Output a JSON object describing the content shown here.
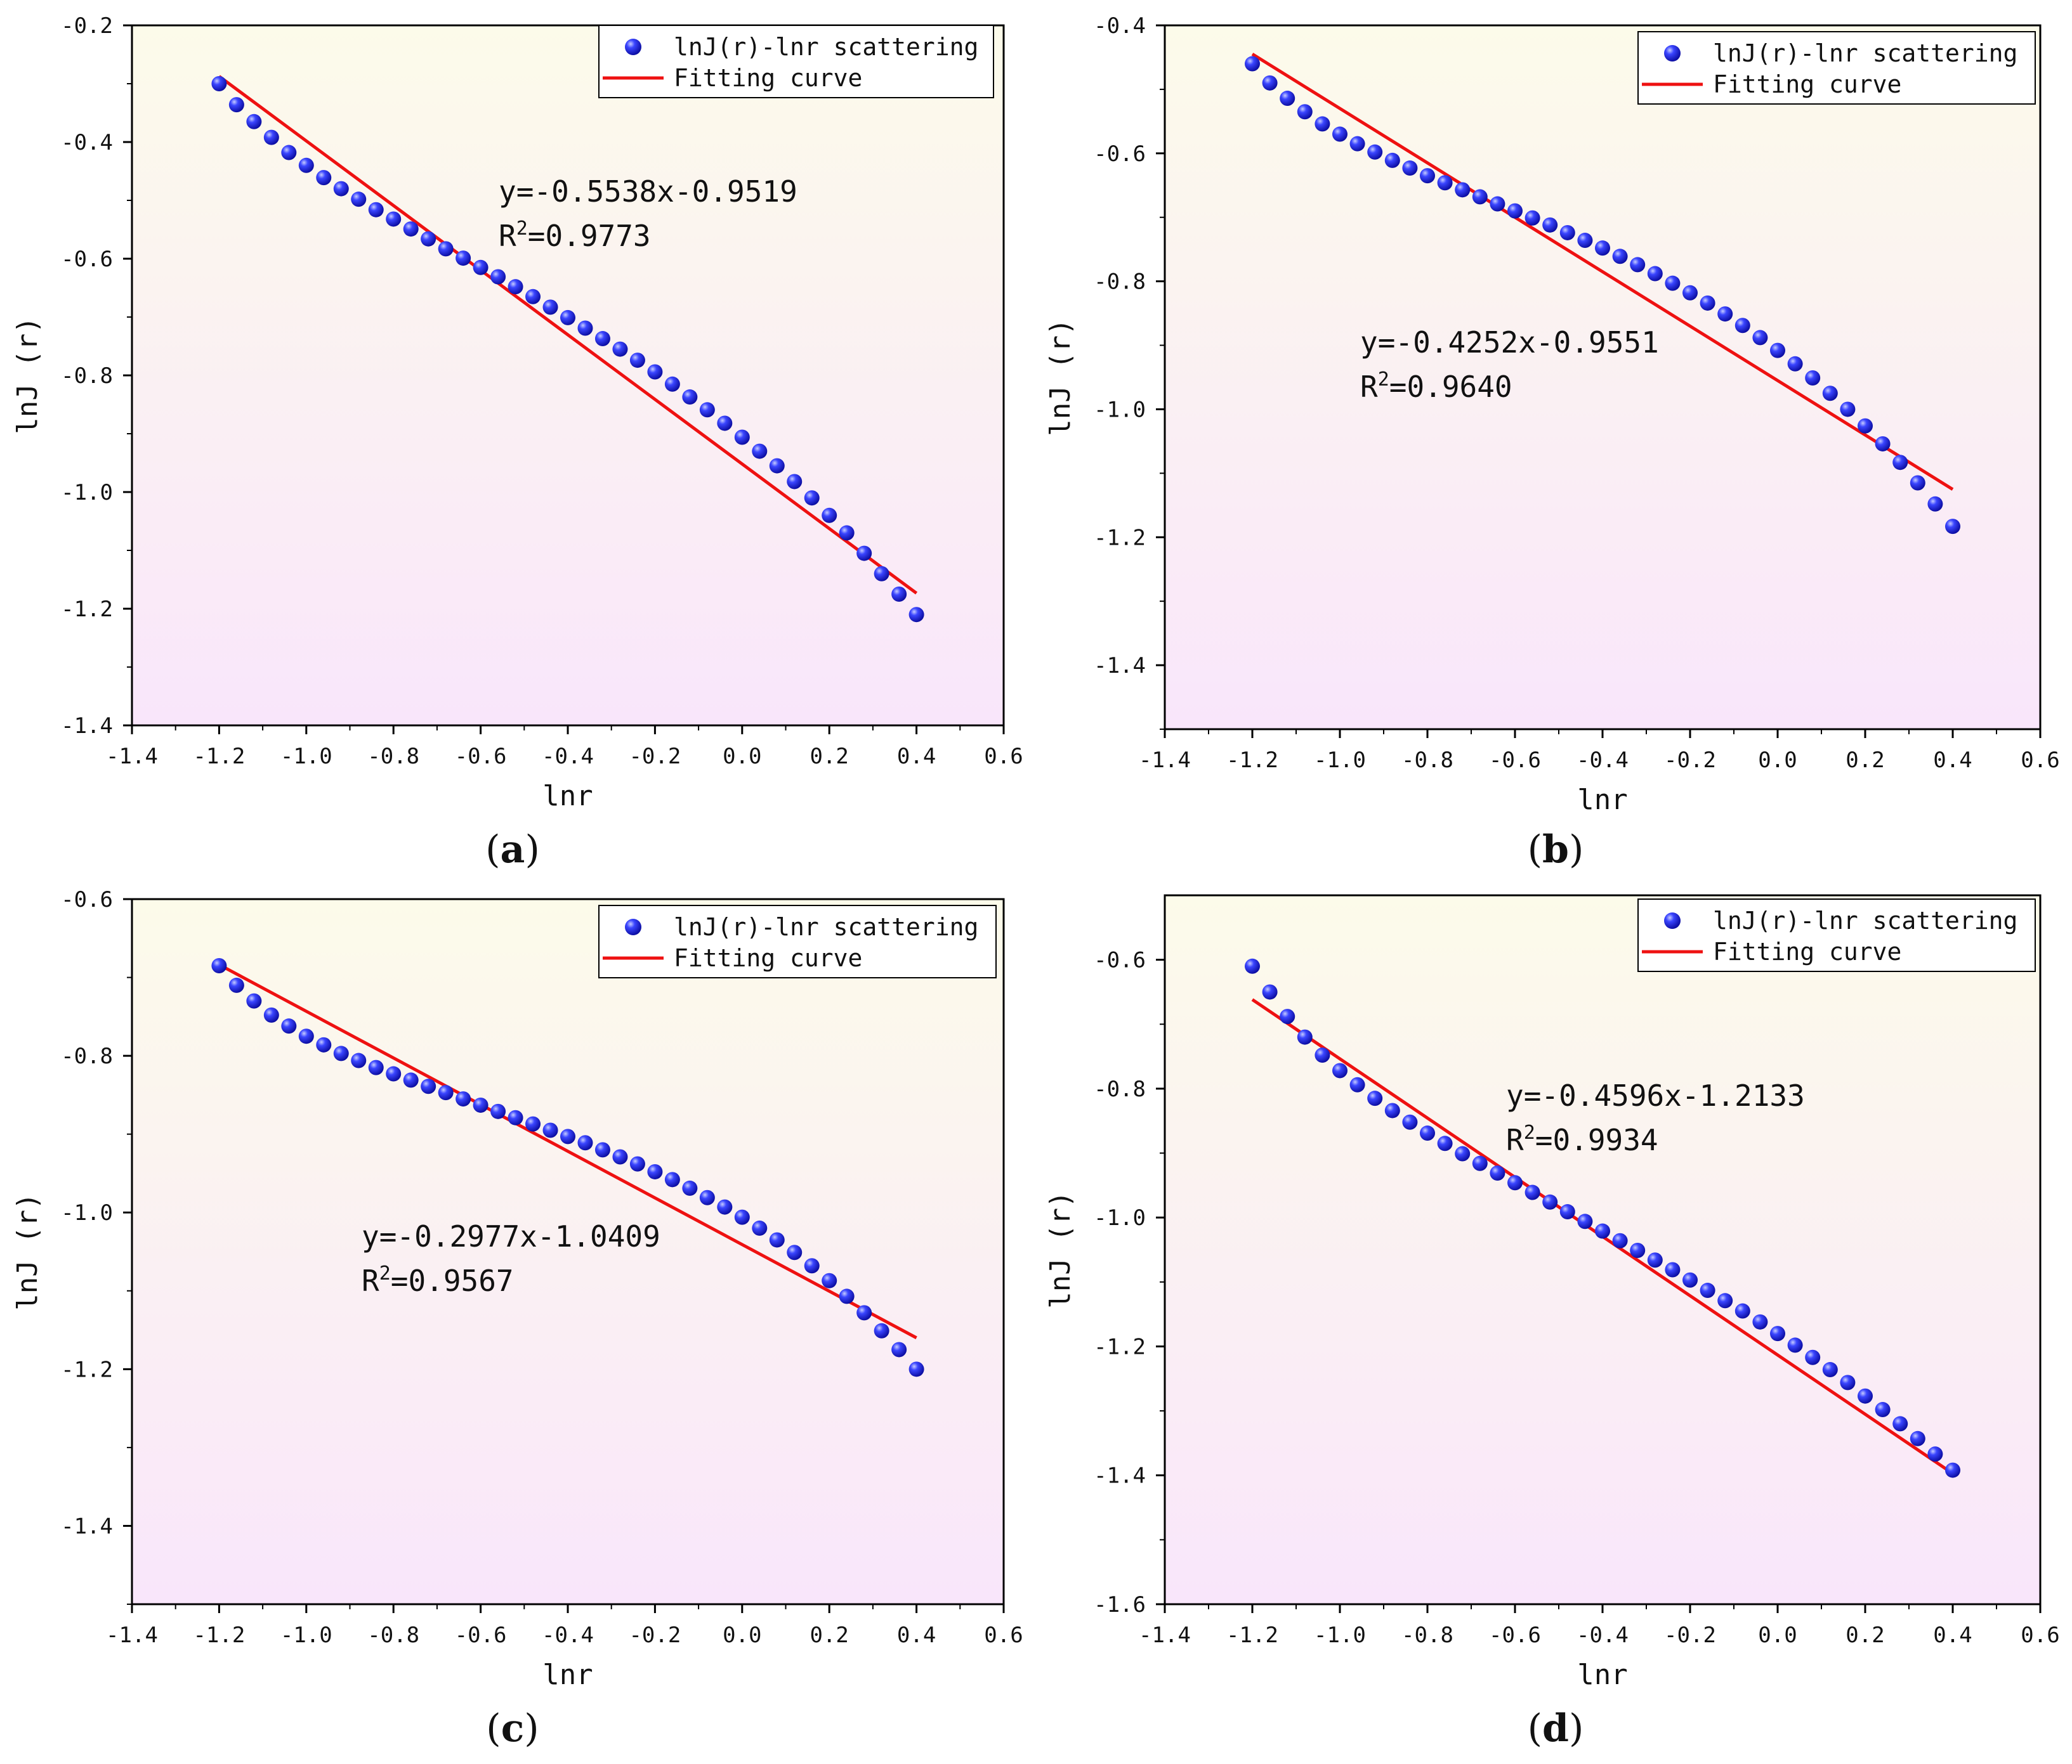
{
  "colors": {
    "scatter": "#1f2bff",
    "fit_line": "#ee1111",
    "bg_top": "#fcfbea",
    "bg_bottom": "#f9e6fb"
  },
  "chart_data": [
    {
      "type": "scatter",
      "panel": "a",
      "caption": "(a)",
      "caption_letter": "a",
      "xlabel": "lnr",
      "ylabel": "lnJ (r)",
      "xlim": [
        -1.4,
        0.6
      ],
      "ylim": [
        -1.4,
        -0.2
      ],
      "xticks": [
        -1.4,
        -1.2,
        -1.0,
        -0.8,
        -0.6,
        -0.4,
        -0.2,
        0.0,
        0.2,
        0.4,
        0.6
      ],
      "xtick_labels": [
        "-1.4",
        "-1.2",
        "-1.0",
        "-0.8",
        "-0.6",
        "-0.4",
        "-0.2",
        "0.0",
        "0.2",
        "0.4",
        "0.6"
      ],
      "yticks": [
        -0.2,
        -0.4,
        -0.6,
        -0.8,
        -1.0,
        -1.2,
        -1.4
      ],
      "ytick_labels": [
        "-0.2",
        "-0.4",
        "-0.6",
        "-0.8",
        "-1.0",
        "-1.2",
        "-1.4"
      ],
      "legend": {
        "scatter": "lnJ(r)-lnr scattering",
        "fit": "Fitting curve",
        "position": "top-right"
      },
      "equation": "y=-0.5538x-0.9519",
      "r2_label": "R",
      "r2_sup": "2",
      "r2_value": "=0.9773",
      "fit": {
        "slope": -0.5538,
        "intercept": -0.9519,
        "x_range": [
          -1.2,
          0.4
        ]
      },
      "series": [
        {
          "name": "lnJ(r)-lnr scattering",
          "x": [
            -1.2,
            -1.16,
            -1.12,
            -1.08,
            -1.04,
            -1.0,
            -0.96,
            -0.92,
            -0.88,
            -0.84,
            -0.8,
            -0.76,
            -0.72,
            -0.68,
            -0.64,
            -0.6,
            -0.56,
            -0.52,
            -0.48,
            -0.44,
            -0.4,
            -0.36,
            -0.32,
            -0.28,
            -0.24,
            -0.2,
            -0.16,
            -0.12,
            -0.08,
            -0.04,
            0.0,
            0.04,
            0.08,
            0.12,
            0.16,
            0.2,
            0.24,
            0.28,
            0.32,
            0.36,
            0.4
          ],
          "y": [
            -0.3,
            -0.336,
            -0.365,
            -0.392,
            -0.418,
            -0.44,
            -0.461,
            -0.48,
            -0.498,
            -0.516,
            -0.532,
            -0.549,
            -0.566,
            -0.583,
            -0.599,
            -0.615,
            -0.631,
            -0.648,
            -0.665,
            -0.683,
            -0.701,
            -0.719,
            -0.737,
            -0.755,
            -0.774,
            -0.794,
            -0.815,
            -0.837,
            -0.859,
            -0.882,
            -0.906,
            -0.93,
            -0.955,
            -0.982,
            -1.01,
            -1.04,
            -1.07,
            -1.105,
            -1.14,
            -1.175,
            -1.21
          ]
        }
      ]
    },
    {
      "type": "scatter",
      "panel": "b",
      "caption": "(b)",
      "caption_letter": "b",
      "xlabel": "lnr",
      "ylabel": "lnJ (r)",
      "xlim": [
        -1.4,
        0.6
      ],
      "ylim": [
        -1.5,
        -0.4
      ],
      "xticks": [
        -1.4,
        -1.2,
        -1.0,
        -0.8,
        -0.6,
        -0.4,
        -0.2,
        0.0,
        0.2,
        0.4,
        0.6
      ],
      "xtick_labels": [
        "-1.4",
        "-1.2",
        "-1.0",
        "-0.8",
        "-0.6",
        "-0.4",
        "-0.2",
        "0.0",
        "0.2",
        "0.4",
        "0.6"
      ],
      "yticks": [
        -0.4,
        -0.6,
        -0.8,
        -1.0,
        -1.2,
        -1.4
      ],
      "ytick_labels": [
        "-0.4",
        "-0.6",
        "-0.8",
        "-1.0",
        "-1.2",
        "-1.4"
      ],
      "legend": {
        "scatter": "lnJ(r)-lnr scattering",
        "fit": "Fitting curve",
        "position": "top-right"
      },
      "equation": "y=-0.4252x-0.9551",
      "r2_label": "R",
      "r2_sup": "2",
      "r2_value": "=0.9640",
      "fit": {
        "slope": -0.4252,
        "intercept": -0.9551,
        "x_range": [
          -1.2,
          0.4
        ]
      },
      "series": [
        {
          "name": "lnJ(r)-lnr scattering",
          "x": [
            -1.2,
            -1.16,
            -1.12,
            -1.08,
            -1.04,
            -1.0,
            -0.96,
            -0.92,
            -0.88,
            -0.84,
            -0.8,
            -0.76,
            -0.72,
            -0.68,
            -0.64,
            -0.6,
            -0.56,
            -0.52,
            -0.48,
            -0.44,
            -0.4,
            -0.36,
            -0.32,
            -0.28,
            -0.24,
            -0.2,
            -0.16,
            -0.12,
            -0.08,
            -0.04,
            0.0,
            0.04,
            0.08,
            0.12,
            0.16,
            0.2,
            0.24,
            0.28,
            0.32,
            0.36,
            0.4
          ],
          "y": [
            -0.46,
            -0.49,
            -0.514,
            -0.535,
            -0.554,
            -0.57,
            -0.585,
            -0.598,
            -0.611,
            -0.623,
            -0.635,
            -0.646,
            -0.657,
            -0.668,
            -0.679,
            -0.69,
            -0.701,
            -0.712,
            -0.724,
            -0.736,
            -0.748,
            -0.761,
            -0.774,
            -0.788,
            -0.803,
            -0.818,
            -0.834,
            -0.851,
            -0.869,
            -0.888,
            -0.908,
            -0.929,
            -0.951,
            -0.975,
            -1.0,
            -1.026,
            -1.054,
            -1.083,
            -1.115,
            -1.148,
            -1.183
          ]
        }
      ]
    },
    {
      "type": "scatter",
      "panel": "c",
      "caption": "(c)",
      "caption_letter": "c",
      "xlabel": "lnr",
      "ylabel": "lnJ (r)",
      "xlim": [
        -1.4,
        0.6
      ],
      "ylim": [
        -1.5,
        -0.6
      ],
      "xticks": [
        -1.4,
        -1.2,
        -1.0,
        -0.8,
        -0.6,
        -0.4,
        -0.2,
        0.0,
        0.2,
        0.4,
        0.6
      ],
      "xtick_labels": [
        "-1.4",
        "-1.2",
        "-1.0",
        "-0.8",
        "-0.6",
        "-0.4",
        "-0.2",
        "0.0",
        "0.2",
        "0.4",
        "0.6"
      ],
      "yticks": [
        -0.6,
        -0.8,
        -1.0,
        -1.2,
        -1.4
      ],
      "ytick_labels": [
        "-0.6",
        "-0.8",
        "-1.0",
        "-1.2",
        "-1.4"
      ],
      "legend": {
        "scatter": "lnJ(r)-lnr scattering",
        "fit": "Fitting curve",
        "position": "top-right"
      },
      "equation": "y=-0.2977x-1.0409",
      "r2_label": "R",
      "r2_sup": "2",
      "r2_value": "=0.9567",
      "fit": {
        "slope": -0.2977,
        "intercept": -1.0409,
        "x_range": [
          -1.2,
          0.4
        ]
      },
      "series": [
        {
          "name": "lnJ(r)-lnr scattering",
          "x": [
            -1.2,
            -1.16,
            -1.12,
            -1.08,
            -1.04,
            -1.0,
            -0.96,
            -0.92,
            -0.88,
            -0.84,
            -0.8,
            -0.76,
            -0.72,
            -0.68,
            -0.64,
            -0.6,
            -0.56,
            -0.52,
            -0.48,
            -0.44,
            -0.4,
            -0.36,
            -0.32,
            -0.28,
            -0.24,
            -0.2,
            -0.16,
            -0.12,
            -0.08,
            -0.04,
            0.0,
            0.04,
            0.08,
            0.12,
            0.16,
            0.2,
            0.24,
            0.28,
            0.32,
            0.36,
            0.4
          ],
          "y": [
            -0.685,
            -0.71,
            -0.73,
            -0.748,
            -0.762,
            -0.775,
            -0.786,
            -0.797,
            -0.806,
            -0.815,
            -0.823,
            -0.831,
            -0.839,
            -0.847,
            -0.855,
            -0.863,
            -0.871,
            -0.879,
            -0.887,
            -0.895,
            -0.903,
            -0.911,
            -0.92,
            -0.929,
            -0.938,
            -0.948,
            -0.958,
            -0.969,
            -0.981,
            -0.993,
            -1.006,
            -1.02,
            -1.035,
            -1.051,
            -1.068,
            -1.087,
            -1.107,
            -1.128,
            -1.151,
            -1.175,
            -1.2
          ]
        }
      ]
    },
    {
      "type": "scatter",
      "panel": "d",
      "caption": "(d)",
      "caption_letter": "d",
      "xlabel": "lnr",
      "ylabel": "lnJ (r)",
      "xlim": [
        -1.4,
        0.6
      ],
      "ylim": [
        -1.6,
        -0.5
      ],
      "xticks": [
        -1.4,
        -1.2,
        -1.0,
        -0.8,
        -0.6,
        -0.4,
        -0.2,
        0.0,
        0.2,
        0.4,
        0.6
      ],
      "xtick_labels": [
        "-1.4",
        "-1.2",
        "-1.0",
        "-0.8",
        "-0.6",
        "-0.4",
        "-0.2",
        "0.0",
        "0.2",
        "0.4",
        "0.6"
      ],
      "yticks": [
        -0.6,
        -0.8,
        -1.0,
        -1.2,
        -1.4,
        -1.6
      ],
      "ytick_labels": [
        "-0.6",
        "-0.8",
        "-1.0",
        "-1.2",
        "-1.4",
        "-1.6"
      ],
      "legend": {
        "scatter": "lnJ(r)-lnr scattering",
        "fit": "Fitting curve",
        "position": "top-right"
      },
      "equation": "y=-0.4596x-1.2133",
      "r2_label": "R",
      "r2_sup": "2",
      "r2_value": "=0.9934",
      "fit": {
        "slope": -0.4596,
        "intercept": -1.2133,
        "x_range": [
          -1.2,
          0.4
        ]
      },
      "series": [
        {
          "name": "lnJ(r)-lnr scattering",
          "x": [
            -1.2,
            -1.16,
            -1.12,
            -1.08,
            -1.04,
            -1.0,
            -0.96,
            -0.92,
            -0.88,
            -0.84,
            -0.8,
            -0.76,
            -0.72,
            -0.68,
            -0.64,
            -0.6,
            -0.56,
            -0.52,
            -0.48,
            -0.44,
            -0.4,
            -0.36,
            -0.32,
            -0.28,
            -0.24,
            -0.2,
            -0.16,
            -0.12,
            -0.08,
            -0.04,
            0.0,
            0.04,
            0.08,
            0.12,
            0.16,
            0.2,
            0.24,
            0.28,
            0.32,
            0.36,
            0.4
          ],
          "y": [
            -0.61,
            -0.65,
            -0.688,
            -0.72,
            -0.748,
            -0.772,
            -0.794,
            -0.815,
            -0.834,
            -0.852,
            -0.869,
            -0.885,
            -0.901,
            -0.916,
            -0.931,
            -0.946,
            -0.961,
            -0.976,
            -0.991,
            -1.006,
            -1.021,
            -1.036,
            -1.051,
            -1.066,
            -1.081,
            -1.097,
            -1.113,
            -1.129,
            -1.145,
            -1.162,
            -1.18,
            -1.198,
            -1.217,
            -1.236,
            -1.256,
            -1.277,
            -1.298,
            -1.32,
            -1.343,
            -1.367,
            -1.392
          ]
        }
      ]
    }
  ]
}
